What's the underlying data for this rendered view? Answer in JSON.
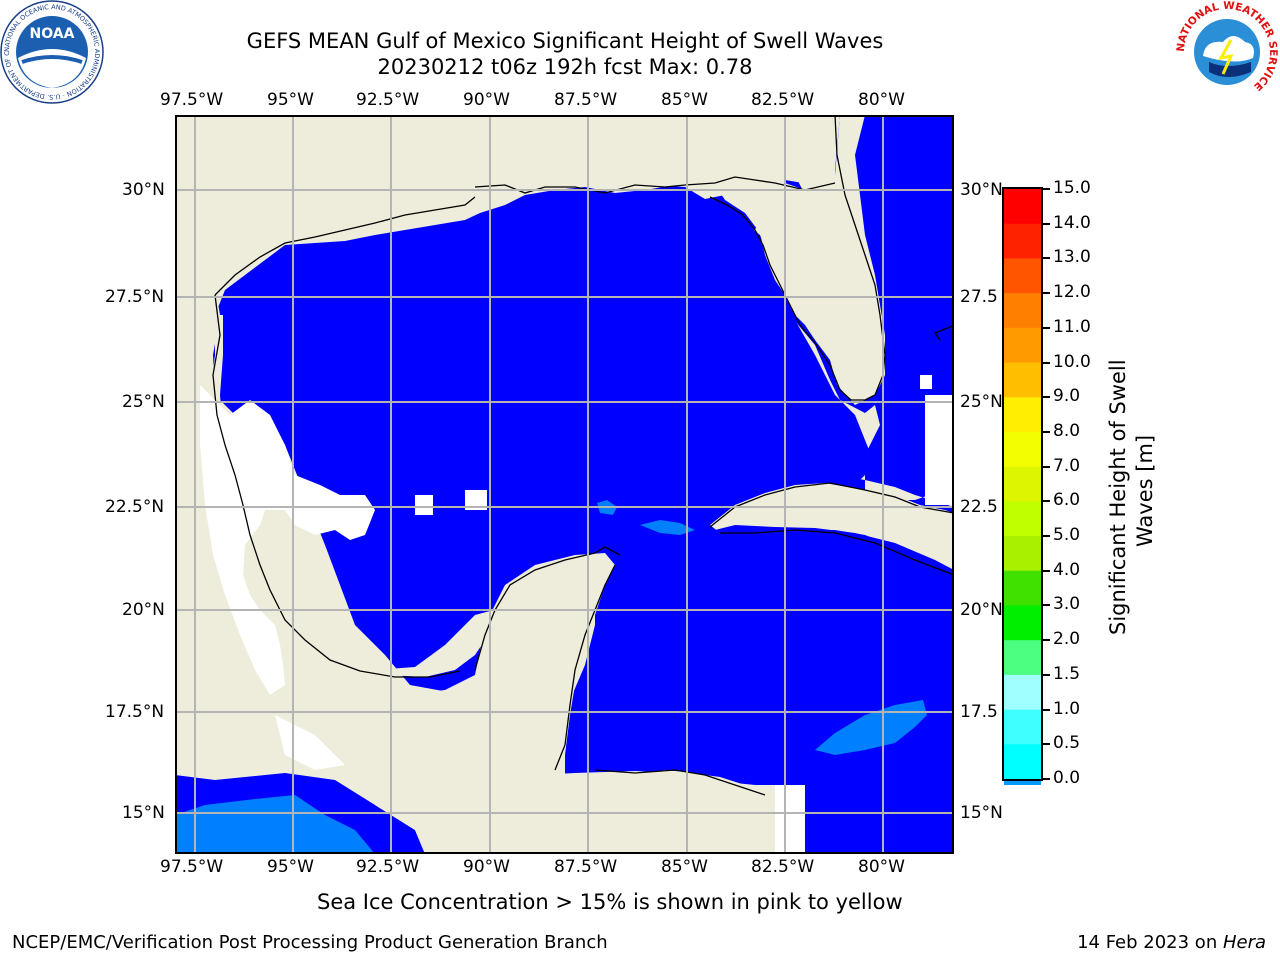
{
  "title_line1": "GEFS MEAN Gulf of Mexico Significant Height of Swell Waves",
  "title_line2": "20230212 t06z 192h fcst   Max: 0.78",
  "lon_ticks": [
    "97.5°W",
    "95°W",
    "92.5°W",
    "90°W",
    "87.5°W",
    "85°W",
    "82.5°W",
    "80°W"
  ],
  "lat_ticks_left": [
    "30°N",
    "27.5°N",
    "25°N",
    "22.5°N",
    "20°N",
    "17.5°N",
    "15°N"
  ],
  "lat_ticks_right": [
    "30°N",
    "27.5",
    "25°N",
    "22.5",
    "20°N",
    "17.5",
    "15°N"
  ],
  "colorbar": {
    "label_line1": "Significant Height of Swell",
    "label_line2": "Waves [m]",
    "ticks": [
      "15.0",
      "14.0",
      "13.0",
      "12.0",
      "11.0",
      "10.0",
      "9.0",
      "8.0",
      "7.0",
      "6.0",
      "5.0",
      "4.0",
      "3.0",
      "2.0",
      "1.5",
      "1.0",
      "0.5",
      "0.0"
    ],
    "colors_top_to_bottom": [
      "#ff0000",
      "#ff2200",
      "#ff5500",
      "#ff8000",
      "#ff9a00",
      "#ffbf00",
      "#ffee00",
      "#f3ff00",
      "#ddf500",
      "#c0ff00",
      "#a8f000",
      "#40e000",
      "#00ee00",
      "#4cff80",
      "#a0ffff",
      "#40ffff",
      "#00ffff",
      "#0099ff",
      "#0000ff"
    ]
  },
  "map": {
    "ocean_color": "#0000ff",
    "land_color": "#eeeddb",
    "swell_light_color": "#0080ff",
    "nodata_color": "#ffffff",
    "grid_color": "#b4b4b4"
  },
  "caption": "Sea Ice Concentration > 15% is shown in pink to yellow",
  "footer_left": "NCEP/EMC/Verification Post Processing Product Generation Branch",
  "footer_right_date": "14 Feb 2023 on ",
  "footer_right_host": "Hera",
  "logo_left_text": "NOAA",
  "logo_left_ring": "NATIONAL OCEANIC AND ATMOSPHERIC ADMINISTRATION · U.S. DEPARTMENT OF COMMERCE",
  "logo_right_ring": "NATIONAL WEATHER SERVICE"
}
